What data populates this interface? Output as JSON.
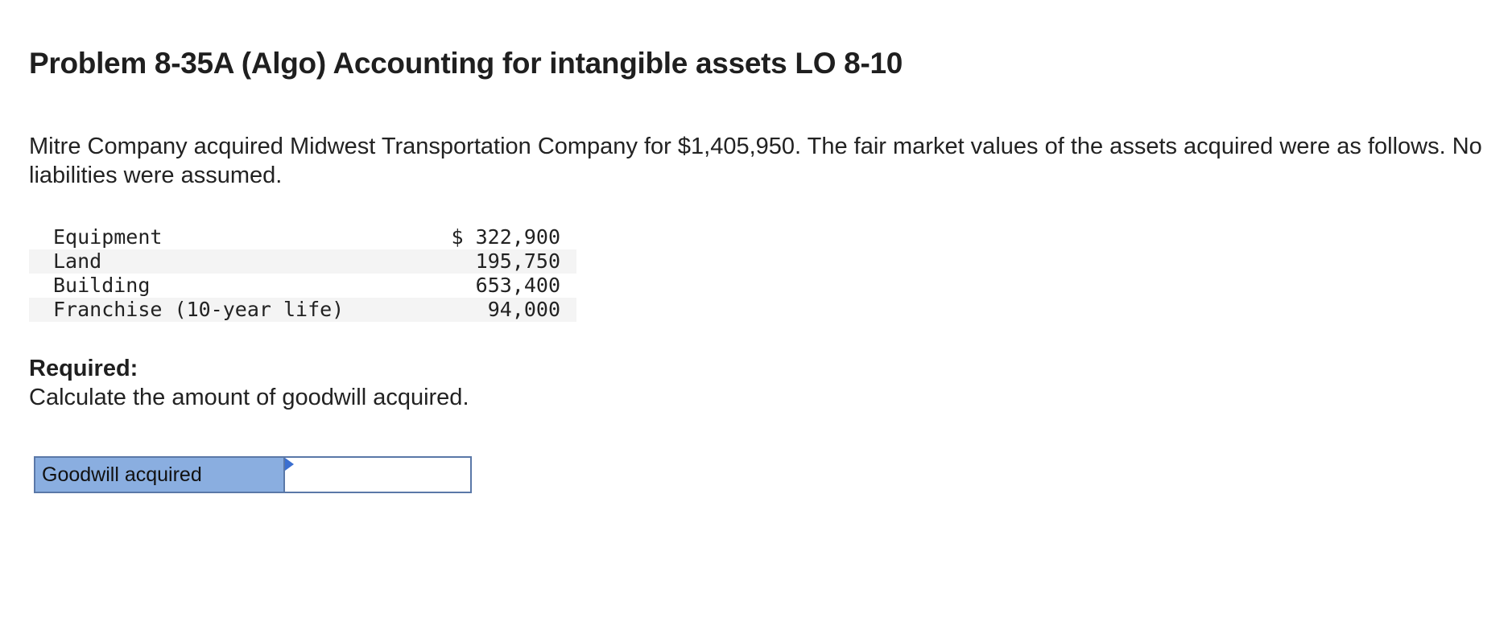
{
  "problem": {
    "title": "Problem 8-35A (Algo) Accounting for intangible assets LO 8-10",
    "intro": "Mitre Company acquired Midwest Transportation Company for $1,405,950. The fair market values of the assets acquired were as follows. No liabilities were assumed."
  },
  "assets": {
    "rows": [
      {
        "label": "Equipment",
        "amount": "$ 322,900"
      },
      {
        "label": "Land",
        "amount": "195,750"
      },
      {
        "label": "Building",
        "amount": "653,400"
      },
      {
        "label": "Franchise (10-year life)",
        "amount": "94,000"
      }
    ]
  },
  "required": {
    "heading": "Required:",
    "text": "Calculate the amount of goodwill acquired."
  },
  "answer": {
    "label": "Goodwill acquired",
    "value": ""
  },
  "colors": {
    "label_cell_bg": "#8aaee0",
    "border": "#5a78a8",
    "flag": "#3b6fd0",
    "row_shade": "#f4f4f4"
  }
}
